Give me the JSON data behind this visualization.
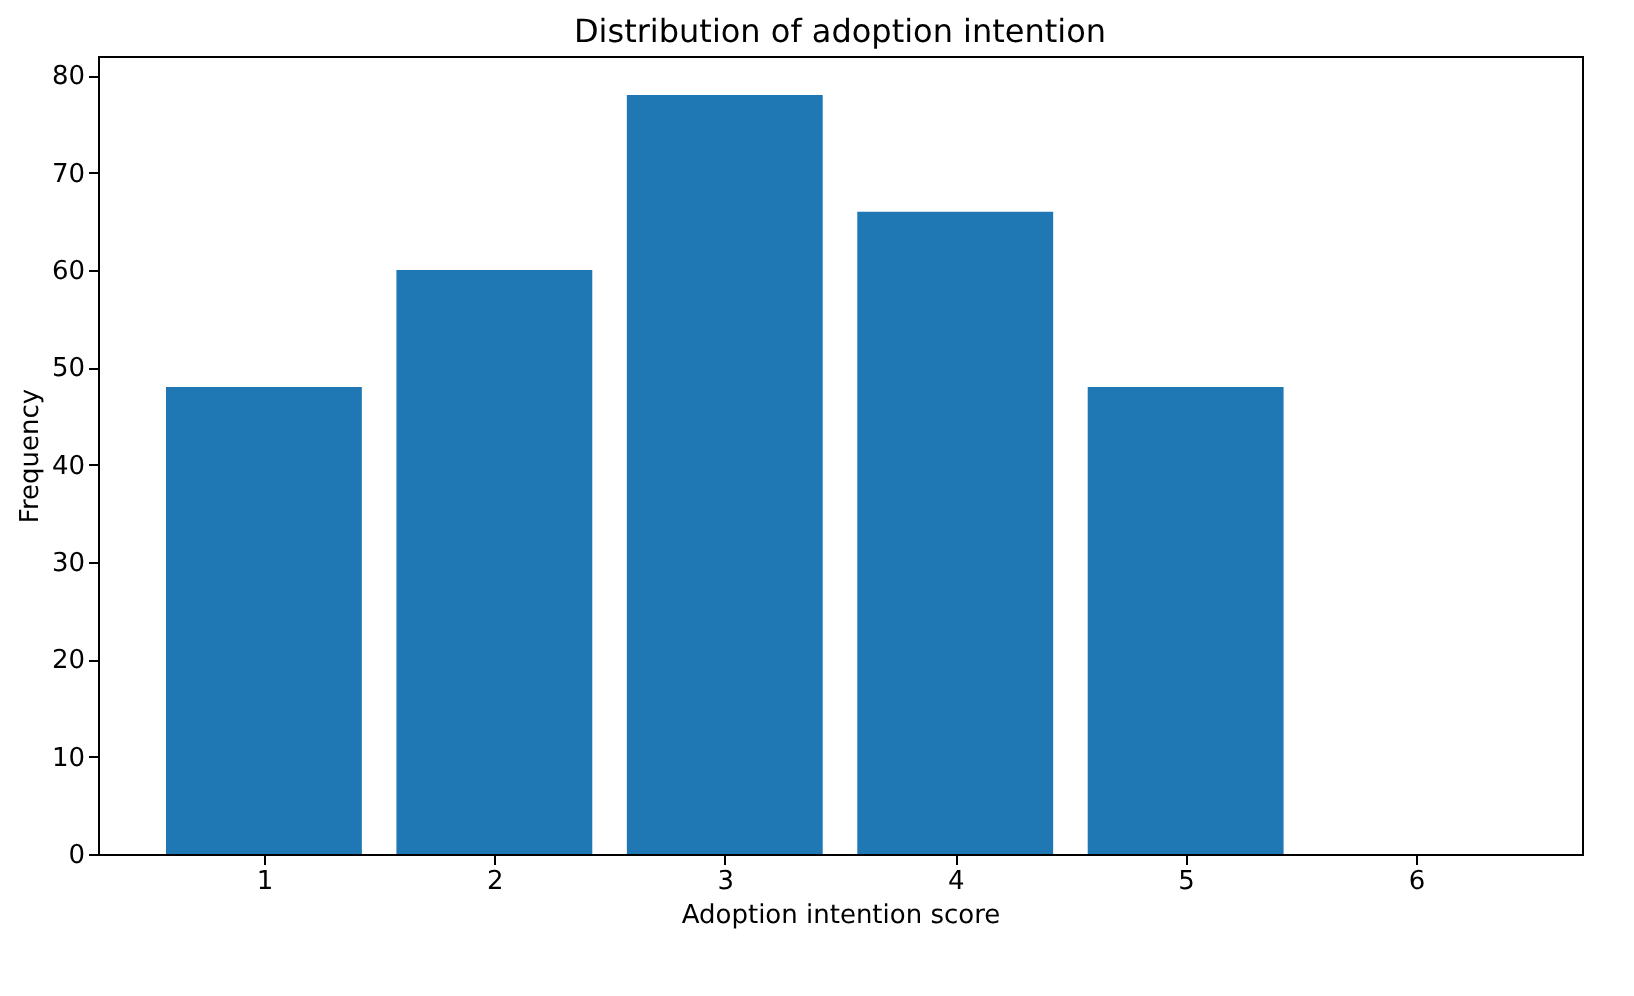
{
  "chart_data": {
    "type": "bar",
    "title": "Distribution of adoption intention",
    "xlabel": "Adoption intention score",
    "ylabel": "Frequency",
    "x": [
      1,
      2,
      3,
      4,
      5,
      6
    ],
    "values": [
      48,
      60,
      78,
      66,
      48,
      0
    ],
    "color": "#1f77b4",
    "xlim": [
      0.28,
      6.72
    ],
    "xticks": [
      1,
      2,
      3,
      4,
      5,
      6
    ],
    "ylim": [
      0,
      82
    ],
    "yticks": [
      0,
      10,
      20,
      30,
      40,
      50,
      60,
      70,
      80
    ],
    "grid": false
  }
}
